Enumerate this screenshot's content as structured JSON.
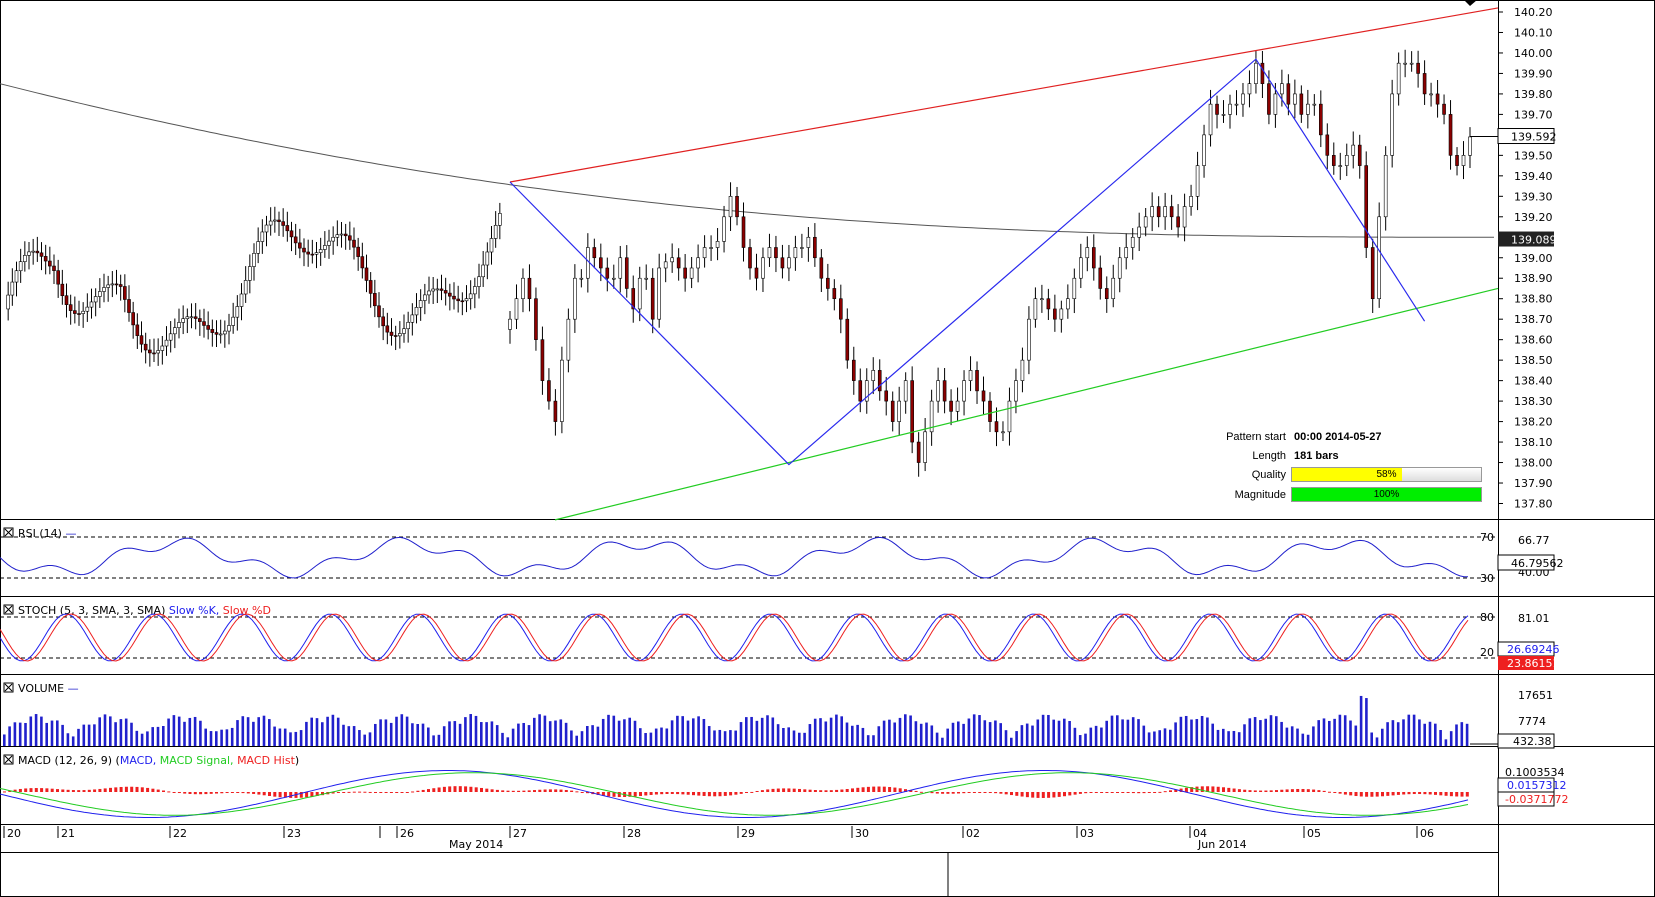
{
  "chart_data": {
    "type": "candlestick",
    "price_axis": {
      "min": 137.8,
      "max": 140.2,
      "ticks": [
        "140.20",
        "140.10",
        "140.00",
        "139.90",
        "139.80",
        "139.70",
        "139.60",
        "139.50",
        "139.40",
        "139.30",
        "139.20",
        "139.10",
        "139.00",
        "138.90",
        "138.80",
        "138.70",
        "138.60",
        "138.50",
        "138.40",
        "138.30",
        "138.20",
        "138.10",
        "138.00",
        "137.90",
        "137.80"
      ]
    },
    "last_price": "139.592",
    "ma_value": "139.089",
    "x_days": [
      "20",
      "21",
      "22",
      "23",
      "26",
      "27",
      "28",
      "29",
      "30",
      "02",
      "03",
      "04",
      "05",
      "06"
    ],
    "x_months": [
      "May 2014",
      "Jun 2014"
    ],
    "pattern_points": [
      {
        "bar": 0,
        "price": 139.37
      },
      {
        "bar": 43,
        "price": 137.99
      },
      {
        "bar": 115,
        "price": 139.97
      },
      {
        "bar": 141,
        "price": 138.69
      }
    ],
    "resistance_line": [
      {
        "bar": 0,
        "price": 139.37
      },
      {
        "bar": 164,
        "price": 140.22
      }
    ],
    "support_line": [
      {
        "bar": 0,
        "price": 137.72
      },
      {
        "bar": 164,
        "price": 138.85
      }
    ],
    "close_series": [
      138.7,
      138.8,
      138.9,
      138.8,
      138.6,
      138.4,
      138.3,
      138.2,
      138.5,
      138.7,
      138.9,
      138.9,
      139.05,
      139.0,
      138.95,
      138.9,
      138.9,
      139.0,
      138.85,
      138.75,
      138.9,
      138.9,
      138.7,
      138.95,
      138.98,
      139.0,
      138.95,
      138.9,
      138.95,
      139.0,
      139.05,
      139.05,
      139.08,
      139.2,
      139.3,
      139.2,
      139.05,
      138.95,
      138.9,
      139.0,
      139.05,
      139.0,
      138.95,
      139.0,
      139.05,
      139.05,
      139.1,
      139.0,
      138.9,
      138.85,
      138.8,
      138.7,
      138.5,
      138.4,
      138.3,
      138.4,
      138.45,
      138.35,
      138.3,
      138.2,
      138.3,
      138.4,
      138.1,
      138.0,
      138.15,
      138.3,
      138.4,
      138.3,
      138.25,
      138.3,
      138.4,
      138.45,
      138.35,
      138.3,
      138.2,
      138.15,
      138.15,
      138.3,
      138.4,
      138.5,
      138.7,
      138.8,
      138.8,
      138.75,
      138.7,
      138.75,
      138.8,
      138.9,
      139.0,
      139.05,
      138.95,
      138.85,
      138.8,
      138.9,
      139.0,
      139.05,
      139.1,
      139.15,
      139.2,
      139.25,
      139.2,
      139.25,
      139.2,
      139.15,
      139.25,
      139.3,
      139.45,
      139.6,
      139.75,
      139.7,
      139.7,
      139.75,
      139.75,
      139.8,
      139.85,
      139.95,
      139.85,
      139.7,
      139.8,
      139.85,
      139.75,
      139.8,
      139.7,
      139.75,
      139.75,
      139.6,
      139.5,
      139.45,
      139.45,
      139.5,
      139.55,
      139.45,
      139.05,
      138.8,
      139.2,
      139.5,
      139.8,
      139.95,
      139.95,
      139.95,
      139.9,
      139.8,
      139.8,
      139.75,
      139.7,
      139.5,
      139.45,
      139.5,
      139.59
    ],
    "indicators": {
      "rsi": {
        "label": "RSI (14)",
        "value": "46.79562",
        "levels": [
          "70",
          "30"
        ],
        "axis_ticks": [
          "66.77",
          "40.00"
        ]
      },
      "stoch": {
        "label": "STOCH (5, 3, SMA, 3, SMA)",
        "k_label": "Slow %K",
        "d_label": "Slow %D",
        "k_value": "26.69246",
        "d_value": "23.86151",
        "levels": [
          "80",
          "20"
        ],
        "axis_ticks": [
          "81.01"
        ]
      },
      "volume": {
        "label": "VOLUME",
        "value": "432.38",
        "axis_ticks": [
          "17651",
          "7774"
        ]
      },
      "macd": {
        "label": "MACD (12, 26, 9)",
        "macd_label": "MACD",
        "signal_label": "MACD Signal",
        "hist_label": "MACD Hist",
        "axis_ticks": [
          "0.1003534"
        ],
        "macd_value": "0.0157312",
        "hist_value": "-0.0371772"
      }
    },
    "pattern_info": {
      "pattern_start_label": "Pattern start",
      "pattern_start": "00:00 2014-05-27",
      "length_label": "Length",
      "length": "181 bars",
      "quality_label": "Quality",
      "quality": "58%",
      "quality_fraction": 0.58,
      "magnitude_label": "Magnitude",
      "magnitude": "100%",
      "magnitude_fraction": 1.0
    },
    "colors": {
      "up": "#000000",
      "down": "#8b0000",
      "resistance": "#e02020",
      "support": "#22cc22",
      "pattern": "#2a2aee",
      "ma": "#555555",
      "rsi": "#2020cc",
      "stoch_k": "#2020ee",
      "stoch_d": "#ee2020",
      "volume": "#2020cc",
      "macd": "#2020ee",
      "signal": "#22cc22",
      "hist": "#ee2020",
      "quality": "#ffff00",
      "magnitude": "#00ee00"
    }
  }
}
